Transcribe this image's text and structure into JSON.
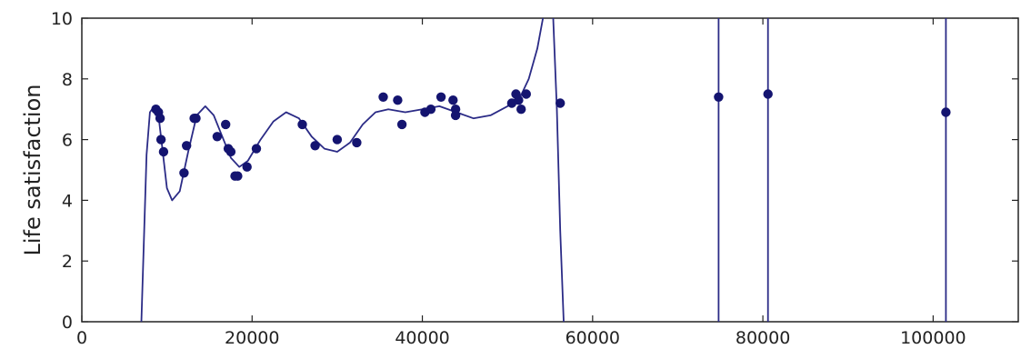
{
  "chart_data": {
    "type": "scatter",
    "title": "",
    "xlabel": "",
    "ylabel": "Life satisfaction",
    "xlim": [
      0,
      110000
    ],
    "ylim": [
      0,
      10
    ],
    "grid": false,
    "legend": "none",
    "colors": {
      "points": "#141470",
      "curve": "#2b2b86",
      "axes": "#222222"
    },
    "x_ticks": [
      0,
      20000,
      40000,
      60000,
      80000,
      100000
    ],
    "x_tick_labels": [
      "0",
      "20000",
      "40000",
      "60000",
      "80000",
      "100000"
    ],
    "y_ticks": [
      0,
      2,
      4,
      6,
      8,
      10
    ],
    "y_tick_labels": [
      "0",
      "2",
      "4",
      "6",
      "8",
      "10"
    ],
    "points": {
      "x": [
        8700,
        9000,
        9200,
        9300,
        9600,
        12000,
        12300,
        13200,
        13400,
        15900,
        16900,
        17200,
        17500,
        18000,
        18300,
        19400,
        20500,
        25900,
        27400,
        30000,
        32300,
        35400,
        37100,
        37600,
        40300,
        41000,
        42200,
        43600,
        43900,
        43900,
        50500,
        51000,
        51300,
        51600,
        52200,
        56200,
        74800,
        80600,
        101500
      ],
      "y": [
        7.0,
        6.9,
        6.7,
        6.0,
        5.6,
        4.9,
        5.8,
        6.7,
        6.7,
        6.1,
        6.5,
        5.7,
        5.6,
        4.8,
        4.8,
        5.1,
        5.7,
        6.5,
        5.8,
        6.0,
        5.9,
        7.4,
        7.3,
        6.5,
        6.9,
        7.0,
        7.4,
        7.3,
        7.0,
        6.8,
        7.2,
        7.5,
        7.3,
        7.0,
        7.5,
        7.2,
        7.4,
        7.5,
        6.9
      ]
    },
    "model_curve": {
      "x": [
        7000,
        7600,
        8000,
        8500,
        9000,
        9500,
        10000,
        10600,
        11500,
        12500,
        13500,
        14500,
        15500,
        16500,
        17500,
        18500,
        19500,
        21000,
        22500,
        24000,
        25500,
        27000,
        28500,
        30000,
        31500,
        33000,
        34500,
        36000,
        38000,
        40000,
        42000,
        44000,
        46000,
        48000,
        50000,
        51500,
        52500,
        53500,
        54500,
        55300,
        55800,
        56200,
        56600
      ],
      "y": [
        0,
        5.5,
        6.9,
        7.1,
        6.8,
        5.6,
        4.4,
        4.0,
        4.3,
        5.6,
        6.8,
        7.1,
        6.8,
        6.1,
        5.4,
        5.1,
        5.3,
        6.0,
        6.6,
        6.9,
        6.7,
        6.1,
        5.7,
        5.6,
        5.9,
        6.5,
        6.9,
        7.0,
        6.9,
        7.0,
        7.1,
        6.9,
        6.7,
        6.8,
        7.1,
        7.4,
        8.0,
        9.0,
        10.5,
        10.5,
        7.0,
        3.0,
        0
      ]
    },
    "vertical_lines_x": [
      74800,
      80600,
      101500
    ]
  }
}
